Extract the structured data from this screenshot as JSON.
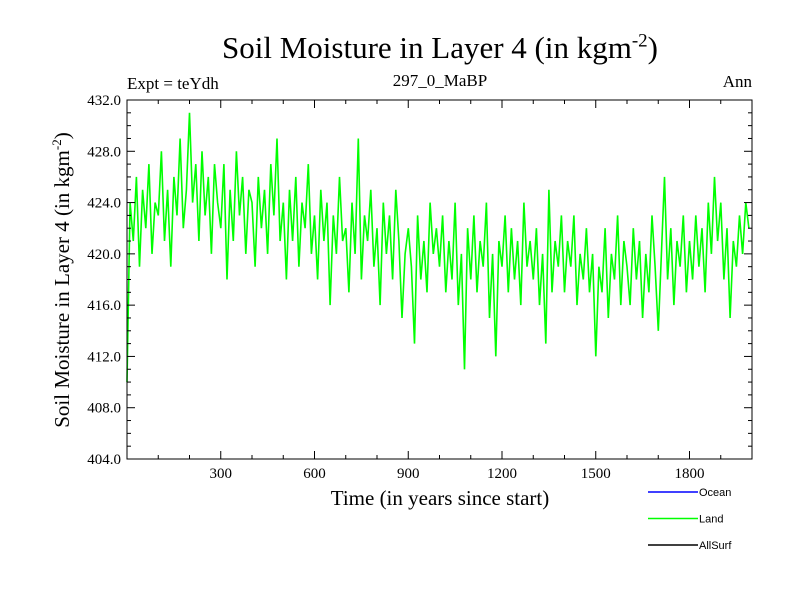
{
  "chart_data": {
    "type": "line",
    "title": "Soil Moisture in Layer 4 (in kgm",
    "title_sup": "-2",
    "title_end": ")",
    "subtitle_left": "Expt = teYdh",
    "subtitle_center": "297_0_MaBP",
    "subtitle_right": "Ann",
    "xlabel": "Time (in years since start)",
    "ylabel": "Soil Moisture in Layer 4 (in kgm",
    "ylabel_sup": "-2",
    "ylabel_end": ")",
    "xlim": [
      0,
      2000
    ],
    "ylim": [
      404,
      432
    ],
    "xticks": [
      300,
      600,
      900,
      1200,
      1500,
      1800
    ],
    "yticks": [
      "404.0",
      "408.0",
      "412.0",
      "416.0",
      "420.0",
      "424.0",
      "428.0",
      "432.0"
    ],
    "legend": [
      {
        "name": "Ocean",
        "color": "#0000ff"
      },
      {
        "name": "Land",
        "color": "#00ff00"
      },
      {
        "name": "AllSurf",
        "color": "#000000"
      }
    ],
    "series": [
      {
        "name": "Land",
        "color": "#00ff00",
        "x_start": 0,
        "x_step": 10,
        "values": [
          410,
          424,
          421,
          426,
          419,
          425,
          422,
          427,
          420,
          424,
          423,
          428,
          421,
          425,
          419,
          426,
          423,
          429,
          422,
          425,
          431,
          424,
          427,
          421,
          428,
          423,
          426,
          420,
          427,
          424,
          422,
          427,
          418,
          425,
          421,
          428,
          423,
          426,
          420,
          425,
          424,
          419,
          426,
          422,
          425,
          420,
          427,
          423,
          429,
          421,
          424,
          418,
          425,
          421,
          426,
          419,
          424,
          422,
          427,
          420,
          423,
          418,
          425,
          421,
          424,
          416,
          423,
          420,
          426,
          421,
          422,
          417,
          424,
          420,
          429,
          418,
          423,
          421,
          425,
          419,
          422,
          416,
          424,
          420,
          423,
          418,
          425,
          421,
          415,
          420,
          422,
          419,
          413,
          423,
          418,
          421,
          417,
          424,
          420,
          422,
          419,
          423,
          417,
          421,
          418,
          424,
          416,
          420,
          411,
          422,
          418,
          423,
          417,
          421,
          419,
          424,
          415,
          420,
          412,
          421,
          419,
          423,
          417,
          422,
          418,
          421,
          416,
          424,
          419,
          421,
          418,
          422,
          416,
          420,
          413,
          425,
          417,
          421,
          419,
          423,
          417,
          421,
          419,
          423,
          416,
          420,
          418,
          422,
          417,
          420,
          412,
          419,
          417,
          422,
          415,
          420,
          418,
          423,
          416,
          421,
          419,
          416,
          422,
          418,
          421,
          415,
          420,
          417,
          423,
          419,
          414,
          420,
          426,
          418,
          422,
          416,
          421,
          419,
          423,
          417,
          421,
          418,
          423,
          419,
          422,
          417,
          424,
          420,
          426,
          421,
          424,
          418,
          422,
          415,
          421,
          419,
          423,
          420,
          424,
          422
        ]
      }
    ]
  }
}
